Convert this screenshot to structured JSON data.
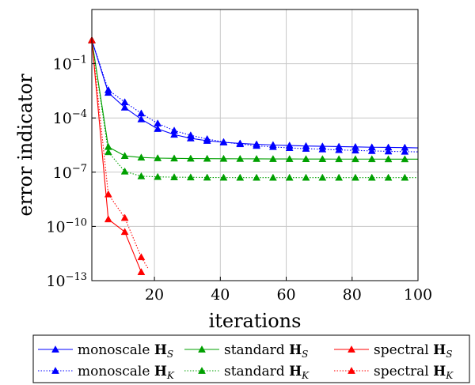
{
  "chart_data": {
    "type": "line",
    "xlabel": "iterations",
    "ylabel": "error indicator",
    "xlim": [
      1,
      100
    ],
    "ylim": [
      1e-13,
      100
    ],
    "yscale": "log",
    "grid": true,
    "legend_position": "bottom",
    "x_ticks": [
      20,
      40,
      60,
      80,
      100
    ],
    "x_tick_labels": [
      "20",
      "40",
      "60",
      "80",
      "100"
    ],
    "y_ticks": [
      1e-13,
      1e-10,
      1e-07,
      0.0001,
      0.1
    ],
    "y_tick_labels": [
      {
        "base": "10",
        "exp": "−13"
      },
      {
        "base": "10",
        "exp": "−10"
      },
      {
        "base": "10",
        "exp": "−7"
      },
      {
        "base": "10",
        "exp": "−4"
      },
      {
        "base": "10",
        "exp": "−1"
      }
    ],
    "series": [
      {
        "name": "monoscale",
        "subscript": "S",
        "color": "#0000ff",
        "dash": "solid",
        "x": [
          1,
          6,
          11,
          16,
          21,
          26,
          31,
          36,
          41,
          46,
          51,
          56,
          61,
          66,
          71,
          76,
          81,
          86,
          91,
          96,
          100
        ],
        "y": [
          2,
          0.0025,
          0.00038,
          8.5e-05,
          2.5e-05,
          1.2e-05,
          7.5e-06,
          5.5e-06,
          4.5e-06,
          3.9e-06,
          3.5e-06,
          3.2e-06,
          3e-06,
          2.8e-06,
          2.7e-06,
          2.6e-06,
          2.5e-06,
          2.4e-06,
          2.35e-06,
          2.3e-06,
          2.2e-06
        ]
      },
      {
        "name": "monoscale",
        "subscript": "K",
        "color": "#0000ff",
        "dash": "dotted",
        "x": [
          1,
          6,
          11,
          16,
          21,
          26,
          31,
          36,
          41,
          46,
          51,
          56,
          61,
          66,
          71,
          76,
          81,
          86,
          91,
          96,
          100
        ],
        "y": [
          2,
          0.0035,
          0.00075,
          0.00018,
          5e-05,
          2e-05,
          1.1e-05,
          6.8e-06,
          4.7e-06,
          3.6e-06,
          2.9e-06,
          2.5e-06,
          2.2e-06,
          2e-06,
          1.85e-06,
          1.7e-06,
          1.6e-06,
          1.5e-06,
          1.42e-06,
          1.37e-06,
          1.33e-06
        ]
      },
      {
        "name": "standard",
        "subscript": "S",
        "color": "#00a000",
        "dash": "solid",
        "x": [
          1,
          6,
          11,
          16,
          21,
          26,
          31,
          36,
          41,
          46,
          51,
          56,
          61,
          66,
          71,
          76,
          81,
          86,
          91,
          96,
          100
        ],
        "y": [
          2,
          2.5e-06,
          8e-07,
          6.5e-07,
          6e-07,
          5.8e-07,
          5.7e-07,
          5.6e-07,
          5.55e-07,
          5.5e-07,
          5.45e-07,
          5.4e-07,
          5.4e-07,
          5.35e-07,
          5.35e-07,
          5.3e-07,
          5.3e-07,
          5.3e-07,
          5.25e-07,
          5.25e-07,
          5.25e-07
        ]
      },
      {
        "name": "standard",
        "subscript": "K",
        "color": "#00a000",
        "dash": "dotted",
        "x": [
          1,
          6,
          11,
          16,
          21,
          26,
          31,
          36,
          41,
          46,
          51,
          56,
          61,
          66,
          71,
          76,
          81,
          86,
          91,
          96,
          100
        ],
        "y": [
          2,
          1.3e-06,
          1.1e-07,
          6e-08,
          5.5e-08,
          5.3e-08,
          5.2e-08,
          5.1e-08,
          5.05e-08,
          5e-08,
          5e-08,
          5e-08,
          5e-08,
          5e-08,
          5e-08,
          5e-08,
          5e-08,
          5e-08,
          5e-08,
          5e-08,
          5e-08
        ]
      },
      {
        "name": "spectral",
        "subscript": "S",
        "color": "#ff0000",
        "dash": "solid",
        "x": [
          1,
          6,
          11,
          16
        ],
        "y": [
          2,
          2.5e-10,
          5e-11,
          3e-13
        ]
      },
      {
        "name": "spectral",
        "subscript": "K",
        "color": "#ff0000",
        "dash": "dotted",
        "x": [
          1,
          6,
          11,
          16,
          18
        ],
        "y": [
          2,
          6e-09,
          3e-10,
          2e-12,
          5e-13
        ]
      }
    ]
  },
  "legend": {
    "bold_symbol": "H",
    "row1": [
      "monoscale",
      "standard",
      "spectral"
    ],
    "row2": [
      "monoscale",
      "standard",
      "spectral"
    ],
    "row1_sub": "S",
    "row2_sub": "K"
  }
}
